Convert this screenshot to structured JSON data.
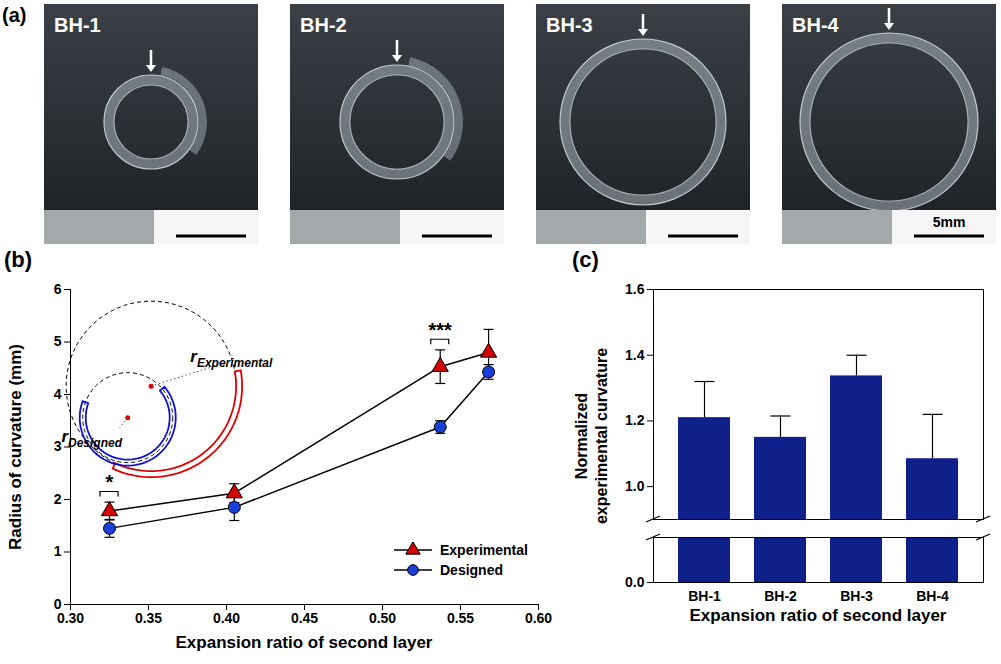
{
  "photos": {
    "label": "(a)",
    "panels": [
      "BH-1",
      "BH-2",
      "BH-3",
      "BH-4"
    ],
    "scale_bar": "5mm"
  },
  "chart_data": [
    {
      "type": "line",
      "title": "(b)",
      "x_label": "Expansion ratio of second layer",
      "y_label": "Radius of curvature (mm)",
      "xlim": [
        0.3,
        0.6
      ],
      "xticks": [
        {
          "value": 0.3,
          "label": "0.30"
        },
        {
          "value": 0.35,
          "label": "0.35"
        },
        {
          "value": 0.4,
          "label": "0.40"
        },
        {
          "value": 0.45,
          "label": "0.45"
        },
        {
          "value": 0.5,
          "label": "0.50"
        },
        {
          "value": 0.55,
          "label": "0.55"
        },
        {
          "value": 0.6,
          "label": "0.60"
        }
      ],
      "ylim": [
        0,
        6
      ],
      "yticks": [
        0,
        1,
        2,
        3,
        4,
        5,
        6
      ],
      "x": [
        0.325,
        0.405,
        0.537,
        0.568
      ],
      "series": [
        {
          "name": "Experimental",
          "color": "#d40000",
          "marker": "triangle",
          "values": [
            1.78,
            2.12,
            4.53,
            4.8
          ],
          "errors": [
            0.17,
            0.18,
            0.32,
            0.44
          ]
        },
        {
          "name": "Designed",
          "color": "#1a3fd6",
          "marker": "circle",
          "values": [
            1.45,
            1.85,
            3.38,
            4.43
          ],
          "errors": [
            0.17,
            0.25,
            0.12,
            0.14
          ]
        }
      ],
      "legend": "lower right",
      "annotations": [
        {
          "text": "*",
          "x": 0.325,
          "y": 2.2
        },
        {
          "text": "***",
          "x": 0.537,
          "y": 5.1
        }
      ],
      "inset_labels": [
        {
          "text": "r",
          "subscript": "Experimental"
        },
        {
          "text": "r",
          "subscript": "Designed"
        }
      ]
    },
    {
      "type": "bar",
      "title": "(c)",
      "x_label": "Expansion ratio of second layer",
      "y_label": "Normalized experimental curvature",
      "categories": [
        "BH-1",
        "BH-2",
        "BH-3",
        "BH-4"
      ],
      "values": [
        1.21,
        1.15,
        1.337,
        1.085
      ],
      "errors": [
        0.11,
        0.065,
        0.063,
        0.135
      ],
      "color": "#10208a",
      "ylim": [
        0,
        1.6
      ],
      "yticks": [
        {
          "value": 0,
          "label": "0.0"
        },
        {
          "value": 1,
          "label": "1.0"
        },
        {
          "value": 1.2,
          "label": "1.2"
        },
        {
          "value": 1.4,
          "label": "1.4"
        },
        {
          "value": 1.6,
          "label": "1.6"
        }
      ],
      "y_break": [
        0.07,
        0.9
      ]
    }
  ]
}
